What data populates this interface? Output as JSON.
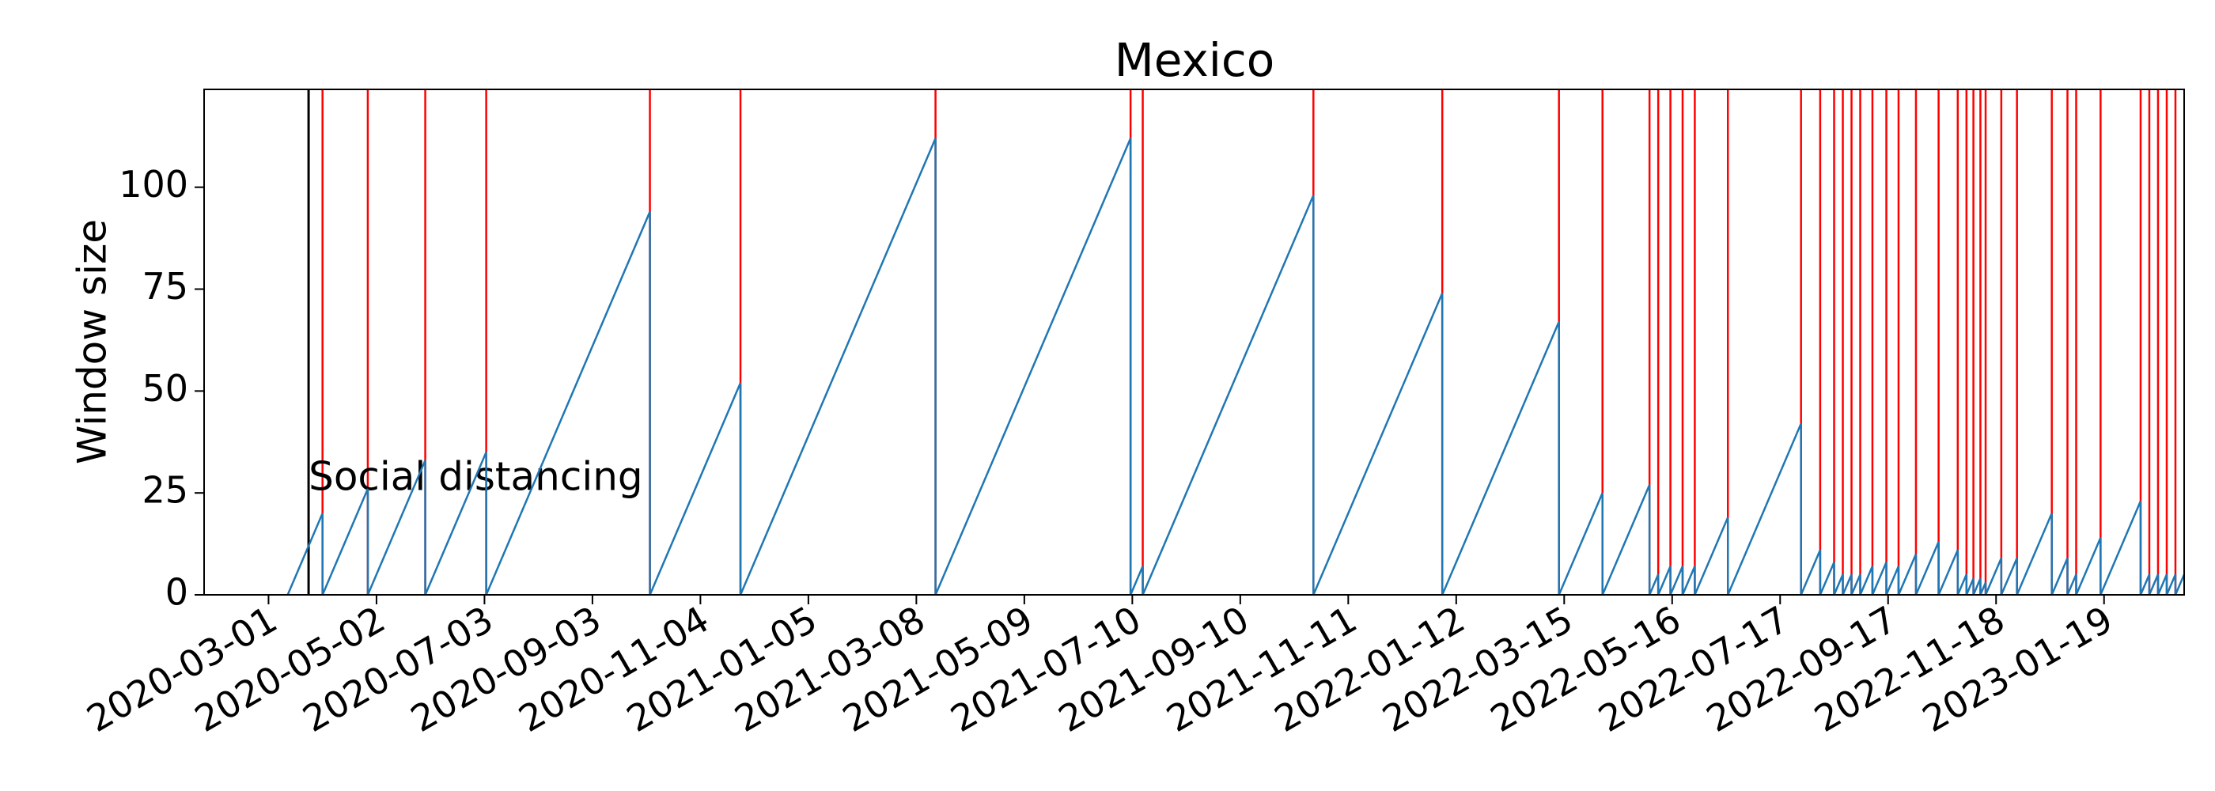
{
  "chart_data": {
    "type": "line",
    "title": "Mexico",
    "y_label": "Window size",
    "xlim": [
      "2020-01-24",
      "2023-03-06"
    ],
    "xticks": [
      "2020-03-01",
      "2020-05-02",
      "2020-07-03",
      "2020-09-03",
      "2020-11-04",
      "2021-01-05",
      "2021-03-08",
      "2021-05-09",
      "2021-07-10",
      "2021-09-10",
      "2021-11-11",
      "2022-01-12",
      "2022-03-15",
      "2022-05-16",
      "2022-07-17",
      "2022-09-17",
      "2022-11-18",
      "2023-01-19"
    ],
    "ylim": [
      0,
      124
    ],
    "yticks": [
      0,
      25,
      50,
      75,
      100
    ],
    "grid": false,
    "series": [
      {
        "color": "#1f77b4",
        "x": [
          "2020-03-12",
          "2020-04-01",
          "2020-04-01",
          "2020-04-27",
          "2020-04-27",
          "2020-05-30",
          "2020-05-30",
          "2020-07-04",
          "2020-07-04",
          "2020-10-06",
          "2020-10-06",
          "2020-11-27",
          "2020-11-27",
          "2021-03-19",
          "2021-03-19",
          "2021-07-09",
          "2021-07-09",
          "2021-07-16",
          "2021-07-16",
          "2021-10-22",
          "2021-10-22",
          "2022-01-04",
          "2022-01-04",
          "2022-03-12",
          "2022-03-12",
          "2022-04-06",
          "2022-04-06",
          "2022-05-03",
          "2022-05-03",
          "2022-05-08",
          "2022-05-08",
          "2022-05-15",
          "2022-05-15",
          "2022-05-22",
          "2022-05-22",
          "2022-05-29",
          "2022-05-29",
          "2022-06-17",
          "2022-06-17",
          "2022-07-29",
          "2022-07-29",
          "2022-08-09",
          "2022-08-09",
          "2022-08-17",
          "2022-08-17",
          "2022-08-22",
          "2022-08-22",
          "2022-08-27",
          "2022-08-27",
          "2022-09-01",
          "2022-09-01",
          "2022-09-08",
          "2022-09-08",
          "2022-09-16",
          "2022-09-16",
          "2022-09-23",
          "2022-09-23",
          "2022-10-03",
          "2022-10-03",
          "2022-10-16",
          "2022-10-16",
          "2022-10-27",
          "2022-10-27",
          "2022-11-01",
          "2022-11-01",
          "2022-11-05",
          "2022-11-05",
          "2022-11-09",
          "2022-11-09",
          "2022-11-12",
          "2022-11-12",
          "2022-11-21",
          "2022-11-21",
          "2022-11-30",
          "2022-11-30",
          "2022-12-20",
          "2022-12-20",
          "2022-12-29",
          "2022-12-29",
          "2023-01-03",
          "2023-01-03",
          "2023-01-17",
          "2023-01-17",
          "2023-02-09",
          "2023-02-09",
          "2023-02-14",
          "2023-02-14",
          "2023-02-19",
          "2023-02-19",
          "2023-02-24",
          "2023-02-24",
          "2023-03-01",
          "2023-03-01",
          "2023-03-06"
        ],
        "values": [
          0,
          20,
          0,
          26,
          0,
          33,
          0,
          35,
          0,
          94,
          0,
          52,
          0,
          112,
          0,
          112,
          0,
          7,
          0,
          98,
          0,
          74,
          0,
          67,
          0,
          25,
          0,
          27,
          0,
          5,
          0,
          7,
          0,
          7,
          0,
          7,
          0,
          19,
          0,
          42,
          0,
          11,
          0,
          8,
          0,
          5,
          0,
          5,
          0,
          5,
          0,
          7,
          0,
          8,
          0,
          7,
          0,
          10,
          0,
          13,
          0,
          11,
          0,
          5,
          0,
          4,
          0,
          4,
          0,
          3,
          0,
          9,
          0,
          9,
          0,
          20,
          0,
          9,
          0,
          5,
          0,
          14,
          0,
          23,
          0,
          5,
          0,
          5,
          0,
          5,
          0,
          5,
          0,
          5
        ]
      }
    ],
    "change_points": {
      "color": "red",
      "x": [
        "2020-04-01",
        "2020-04-27",
        "2020-05-30",
        "2020-07-04",
        "2020-10-06",
        "2020-11-27",
        "2021-03-19",
        "2021-07-09",
        "2021-07-16",
        "2021-10-22",
        "2022-01-04",
        "2022-03-12",
        "2022-04-06",
        "2022-05-03",
        "2022-05-08",
        "2022-05-15",
        "2022-05-22",
        "2022-05-29",
        "2022-06-17",
        "2022-07-29",
        "2022-08-09",
        "2022-08-17",
        "2022-08-22",
        "2022-08-27",
        "2022-09-01",
        "2022-09-08",
        "2022-09-16",
        "2022-09-23",
        "2022-10-03",
        "2022-10-16",
        "2022-10-27",
        "2022-11-01",
        "2022-11-05",
        "2022-11-09",
        "2022-11-12",
        "2022-11-21",
        "2022-11-30",
        "2022-12-20",
        "2022-12-29",
        "2023-01-03",
        "2023-01-17",
        "2023-02-09",
        "2023-02-14",
        "2023-02-19",
        "2023-02-24",
        "2023-03-01"
      ]
    },
    "event": {
      "text": "Social distancing",
      "x": "2020-03-24",
      "color": "black"
    }
  }
}
